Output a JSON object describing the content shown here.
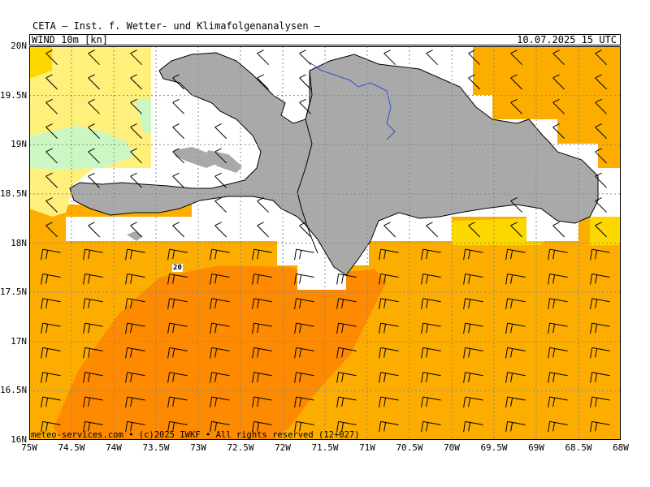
{
  "header": {
    "title": "CETA — Inst. f. Wetter- und Klimafolgenanalysen —",
    "variable": "WIND 10m [kn]",
    "datetime": "10.07.2025 15 UTC"
  },
  "footer": "meteo-services.com • (c)2025 IWKF • All rights reserved (12+027)",
  "axes": {
    "lat_labels": [
      "20N",
      "19.5N",
      "19N",
      "18.5N",
      "18N",
      "17.5N",
      "17N",
      "16.5N",
      "16N"
    ],
    "lon_labels": [
      "75W",
      "74.5W",
      "74W",
      "73.5W",
      "73W",
      "72.5W",
      "72W",
      "71.5W",
      "71W",
      "70.5W",
      "70W",
      "69.5W",
      "69W",
      "68.5W",
      "68W"
    ]
  },
  "contour_label": "20",
  "colors": {
    "land": "#a9a9a9",
    "coast": "#000000",
    "river": "#3050d0",
    "band_5_10": "#cdf7c2",
    "band_10_15": "#fef07a",
    "band_15_20": "#fcd700",
    "band_20_25": "#fcad00",
    "band_25_30": "#fd8a00"
  }
}
